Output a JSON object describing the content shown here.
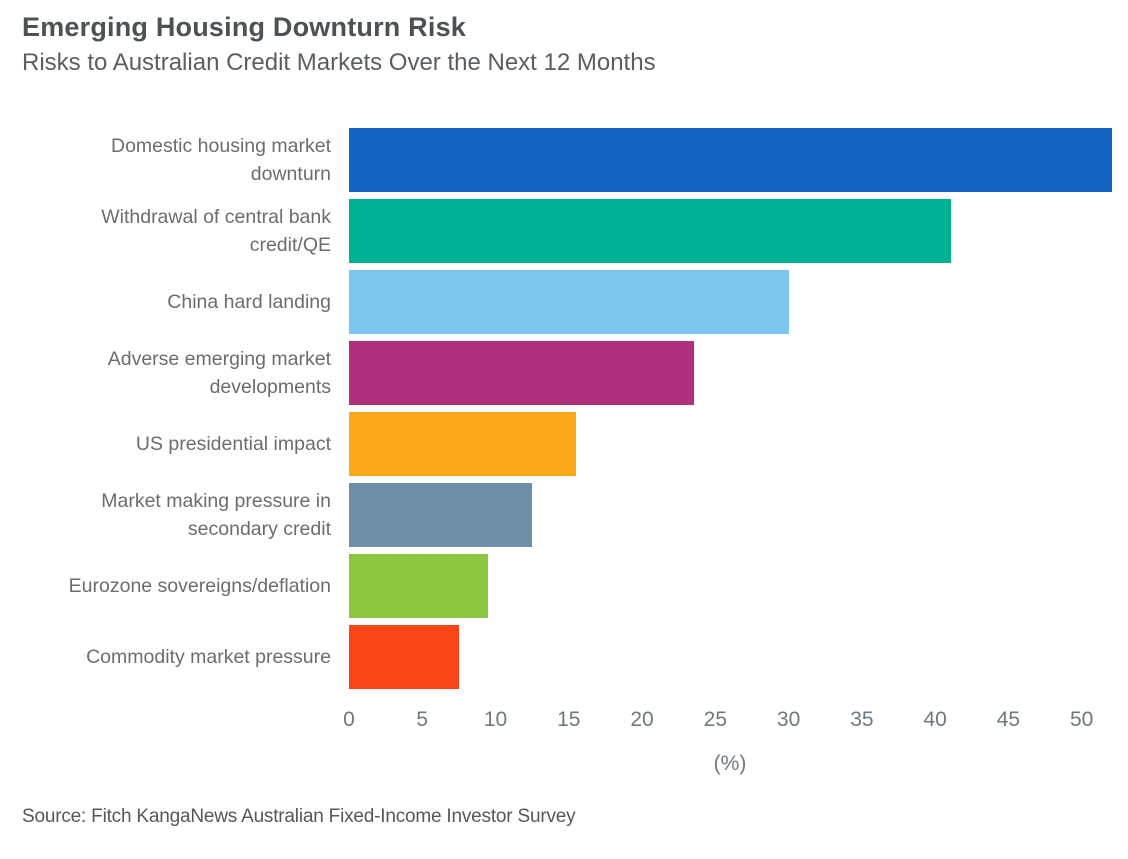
{
  "header": {
    "title": "Emerging Housing Downturn Risk",
    "subtitle": "Risks to Australian Credit Markets Over the Next 12 Months"
  },
  "chart_data": {
    "type": "bar",
    "orientation": "horizontal",
    "title": "Emerging Housing Downturn Risk",
    "subtitle": "Risks to Australian Credit Markets Over the Next 12 Months",
    "xlabel": "(%)",
    "xlim": [
      0,
      52
    ],
    "x_ticks": [
      0,
      5,
      10,
      15,
      20,
      25,
      30,
      35,
      40,
      45,
      50
    ],
    "grid": false,
    "legend": "none",
    "categories": [
      "Domestic housing market downturn",
      "Withdrawal of central bank credit/QE",
      "China hard landing",
      "Adverse emerging market developments",
      "US presidential impact",
      "Market making pressure in secondary credit",
      "Eurozone sovereigns/deflation",
      "Commodity market pressure"
    ],
    "values": [
      52,
      41,
      30,
      23.5,
      15.5,
      12.5,
      9.5,
      7.5
    ],
    "colors": [
      "#1161bf",
      "#00b294",
      "#7dc7ef",
      "#b0307e",
      "#faa71a",
      "#6e8ea8",
      "#8cc63f",
      "#fa4616"
    ]
  },
  "axis": {
    "unit_label": "(%)"
  },
  "footer": {
    "source": "Source: Fitch KangaNews Australian Fixed-Income Investor Survey"
  },
  "palette": {
    "title_text": "#4c5156",
    "subtitle_text": "#5a5e62",
    "category_text": "#6a6d70",
    "tick_text": "#6f7881",
    "source_text": "#54585c",
    "background": "#ffffff"
  }
}
